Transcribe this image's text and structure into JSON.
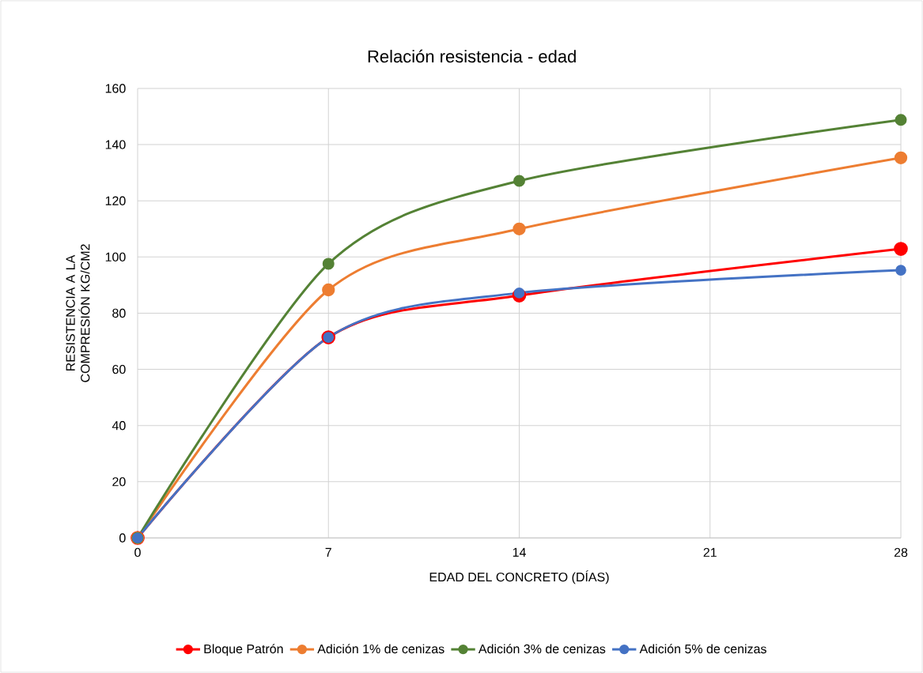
{
  "chart_data": {
    "type": "line",
    "title": "Relación resistencia - edad",
    "xlabel": "EDAD DEL CONCRETO (DÍAS)",
    "ylabel": "RESISTENCIA A LA COMPRESIÓN KG/CM2",
    "x": [
      0,
      7,
      14,
      28
    ],
    "series": [
      {
        "name": "Bloque Patrón",
        "color": "#ff0000",
        "values": [
          0,
          71.4,
          86.3,
          102.9
        ]
      },
      {
        "name": "Adición 1% de cenizas",
        "color": "#ed7d31",
        "values": [
          0,
          88.3,
          110,
          135.3
        ]
      },
      {
        "name": "Adición 3% de cenizas",
        "color": "#548235",
        "values": [
          0,
          97.6,
          127.1,
          148.8
        ]
      },
      {
        "name": "Adición 5% de cenizas",
        "color": "#4472c4",
        "values": [
          0,
          71.4,
          87.2,
          95.3
        ]
      }
    ],
    "xlim": [
      0,
      28
    ],
    "ylim": [
      0,
      160
    ],
    "xticks": [
      0,
      7,
      14,
      21,
      28
    ],
    "yticks": [
      0,
      20,
      40,
      60,
      80,
      100,
      120,
      140,
      160
    ],
    "grid": true,
    "legend": "bottom",
    "marker": "circle",
    "line_style": "solid"
  }
}
